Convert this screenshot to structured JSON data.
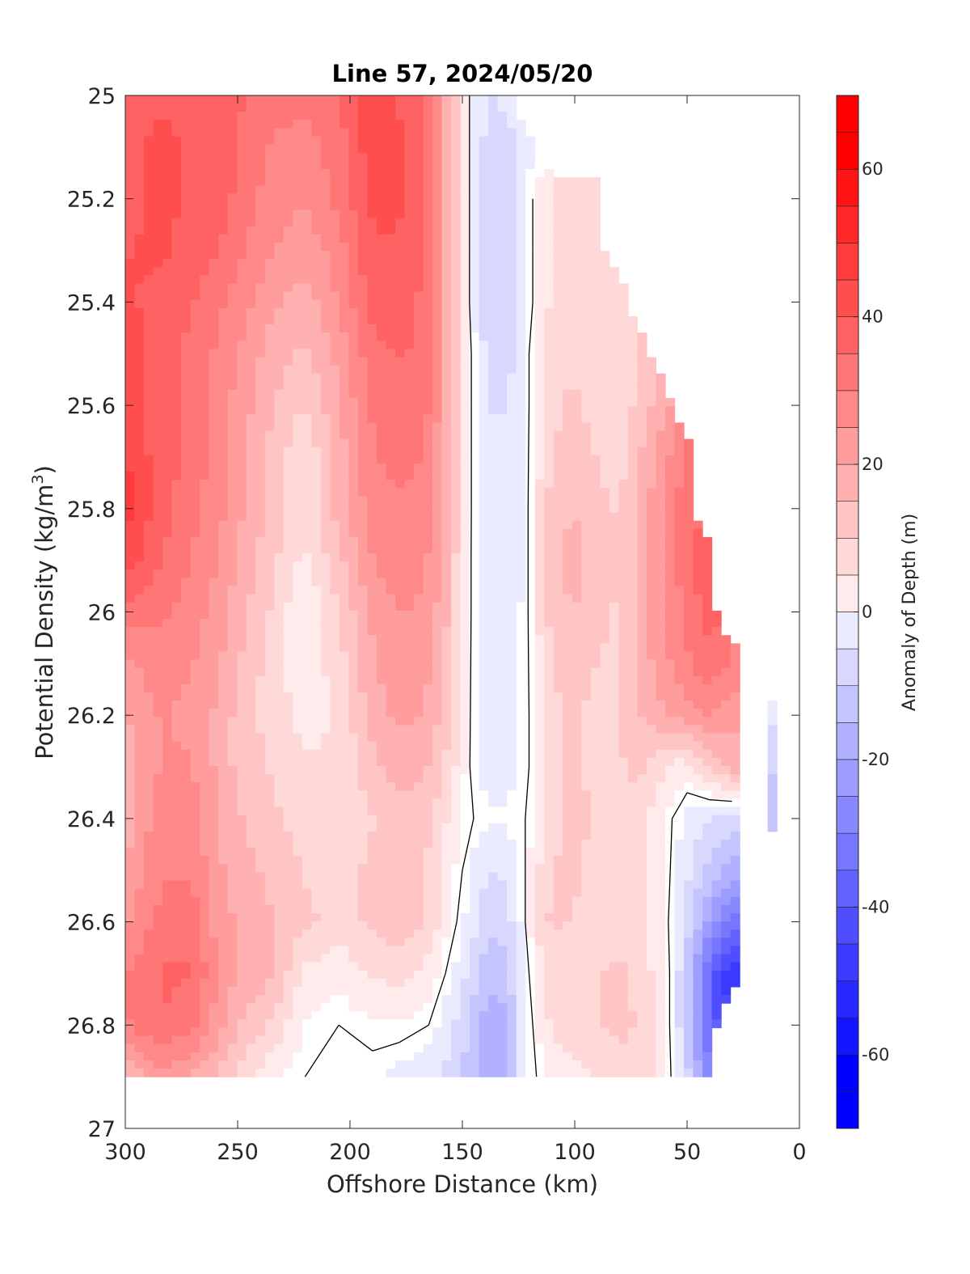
{
  "chart_data": {
    "type": "heatmap",
    "subtype": "filled-contour",
    "title": "Line 57, 2024/05/20",
    "xlabel": "Offshore Distance (km)",
    "ylabel_main": "Potential Density (kg/m",
    "ylabel_sup": "3",
    "ylabel_close": ")",
    "xlim": [
      300,
      0
    ],
    "x_reversed": true,
    "ylim": [
      25,
      27
    ],
    "y_reversed": true,
    "x_ticks": [
      300,
      250,
      200,
      150,
      100,
      50,
      0
    ],
    "x_tick_labels": [
      "300",
      "250",
      "200",
      "150",
      "100",
      "50",
      "0"
    ],
    "y_ticks": [
      25,
      25.2,
      25.4,
      25.6,
      25.8,
      26,
      26.2,
      26.4,
      26.6,
      26.8,
      27
    ],
    "y_tick_labels": [
      "25",
      "25.2",
      "25.4",
      "25.6",
      "25.8",
      "26",
      "26.2",
      "26.4",
      "26.6",
      "26.8",
      "27"
    ],
    "colorbar": {
      "label": "Anomaly of Depth (m)",
      "range": [
        -70,
        70
      ],
      "step": 5,
      "ticks": [
        60,
        40,
        20,
        0,
        -20,
        -40,
        -60
      ],
      "tick_labels": [
        "60",
        "40",
        "20",
        "0",
        "-20",
        "-40",
        "-60"
      ],
      "colormap": "blue-white-red",
      "low_color": "#0000ff",
      "high_color": "#ff0000"
    },
    "zero_contour_color": "#000000",
    "x": [
      300,
      285,
      270,
      260,
      250,
      235,
      220,
      205,
      190,
      178,
      165,
      155,
      145,
      138,
      130,
      122,
      112,
      100,
      90,
      80,
      70,
      60,
      50,
      40,
      30,
      20,
      10
    ],
    "y": [
      25.0,
      25.1,
      25.2,
      25.3,
      25.4,
      25.5,
      25.6,
      25.7,
      25.8,
      25.9,
      26.0,
      26.1,
      26.2,
      26.3,
      26.4,
      26.5,
      26.6,
      26.7,
      26.8,
      26.9
    ],
    "z": [
      [
        40,
        42,
        40,
        38,
        38,
        35,
        34,
        38,
        45,
        42,
        35,
        18,
        -4,
        -8,
        -6,
        null,
        null,
        null,
        null,
        null,
        null,
        null,
        null,
        null,
        null,
        null,
        null
      ],
      [
        40,
        44,
        42,
        40,
        38,
        32,
        30,
        35,
        46,
        44,
        36,
        18,
        -4,
        -10,
        -10,
        -4,
        null,
        null,
        null,
        null,
        null,
        null,
        null,
        null,
        null,
        null,
        null
      ],
      [
        40,
        44,
        42,
        42,
        36,
        30,
        28,
        34,
        44,
        44,
        36,
        18,
        -4,
        -12,
        -12,
        -4,
        8,
        10,
        12,
        null,
        null,
        null,
        null,
        null,
        null,
        null,
        null
      ],
      [
        42,
        44,
        40,
        38,
        34,
        28,
        24,
        30,
        42,
        42,
        36,
        18,
        -4,
        -12,
        -12,
        -4,
        8,
        12,
        12,
        null,
        null,
        null,
        null,
        null,
        null,
        null,
        null
      ],
      [
        44,
        40,
        38,
        34,
        30,
        24,
        20,
        28,
        40,
        40,
        36,
        18,
        -4,
        -12,
        -12,
        -4,
        8,
        10,
        8,
        10,
        null,
        null,
        null,
        null,
        null,
        null,
        null
      ],
      [
        46,
        40,
        36,
        32,
        28,
        20,
        16,
        24,
        36,
        38,
        36,
        18,
        -2,
        -10,
        -10,
        -2,
        10,
        12,
        8,
        10,
        14,
        null,
        null,
        null,
        null,
        null,
        null
      ],
      [
        46,
        40,
        36,
        30,
        26,
        18,
        12,
        22,
        34,
        36,
        34,
        18,
        -2,
        -8,
        -8,
        -2,
        10,
        14,
        10,
        10,
        14,
        22,
        null,
        null,
        null,
        null,
        null
      ],
      [
        48,
        40,
        36,
        30,
        24,
        16,
        8,
        20,
        32,
        34,
        32,
        18,
        -2,
        -6,
        -6,
        -2,
        12,
        16,
        12,
        10,
        18,
        26,
        34,
        null,
        null,
        null,
        null
      ],
      [
        50,
        40,
        34,
        30,
        24,
        16,
        8,
        20,
        30,
        32,
        30,
        18,
        -2,
        -6,
        -6,
        -2,
        14,
        18,
        14,
        12,
        20,
        28,
        36,
        null,
        null,
        null,
        null
      ],
      [
        46,
        38,
        32,
        28,
        22,
        14,
        6,
        16,
        28,
        30,
        28,
        16,
        -2,
        -6,
        -6,
        -2,
        14,
        20,
        14,
        12,
        20,
        28,
        36,
        42,
        null,
        null,
        null
      ],
      [
        36,
        34,
        30,
        26,
        20,
        12,
        2,
        12,
        24,
        28,
        26,
        16,
        -2,
        -4,
        -4,
        -2,
        14,
        18,
        14,
        12,
        20,
        28,
        34,
        40,
        null,
        null,
        null
      ],
      [
        26,
        30,
        28,
        24,
        18,
        10,
        4,
        10,
        22,
        26,
        24,
        14,
        -2,
        -4,
        -4,
        -2,
        12,
        16,
        12,
        12,
        20,
        26,
        32,
        36,
        32,
        null,
        null
      ],
      [
        22,
        28,
        26,
        22,
        16,
        10,
        6,
        8,
        20,
        24,
        22,
        12,
        -2,
        -4,
        -4,
        -2,
        10,
        14,
        10,
        12,
        18,
        22,
        26,
        28,
        24,
        null,
        -6
      ],
      [
        20,
        28,
        28,
        22,
        16,
        12,
        8,
        8,
        16,
        20,
        18,
        10,
        -2,
        -4,
        -4,
        -2,
        10,
        14,
        10,
        12,
        14,
        8,
        4,
        14,
        20,
        null,
        -12
      ],
      [
        20,
        30,
        30,
        24,
        18,
        14,
        10,
        8,
        12,
        16,
        14,
        6,
        0,
        -2,
        -2,
        0,
        10,
        14,
        12,
        12,
        10,
        2,
        -4,
        -8,
        -10,
        null,
        -16
      ],
      [
        22,
        32,
        32,
        24,
        20,
        16,
        12,
        10,
        14,
        16,
        12,
        4,
        -4,
        -8,
        -6,
        0,
        12,
        14,
        10,
        10,
        8,
        2,
        -6,
        -14,
        -20,
        null,
        null
      ],
      [
        26,
        34,
        36,
        26,
        22,
        18,
        14,
        10,
        14,
        16,
        12,
        2,
        -6,
        -12,
        -10,
        0,
        14,
        12,
        10,
        10,
        8,
        2,
        -10,
        -24,
        -36,
        null,
        null
      ],
      [
        32,
        38,
        38,
        28,
        22,
        18,
        6,
        4,
        8,
        10,
        6,
        -2,
        -10,
        -16,
        -14,
        -2,
        10,
        10,
        12,
        14,
        10,
        4,
        -14,
        -40,
        -52,
        null,
        null
      ],
      [
        32,
        38,
        34,
        26,
        18,
        12,
        2,
        0,
        2,
        2,
        0,
        -6,
        -14,
        -22,
        -18,
        -4,
        8,
        10,
        12,
        14,
        12,
        4,
        -14,
        -42,
        null,
        null,
        null
      ],
      [
        16,
        26,
        22,
        18,
        10,
        4,
        0,
        -2,
        -2,
        -4,
        -6,
        -10,
        -16,
        -22,
        -18,
        -4,
        4,
        6,
        8,
        10,
        10,
        4,
        -10,
        -30,
        null,
        null,
        null
      ]
    ]
  }
}
